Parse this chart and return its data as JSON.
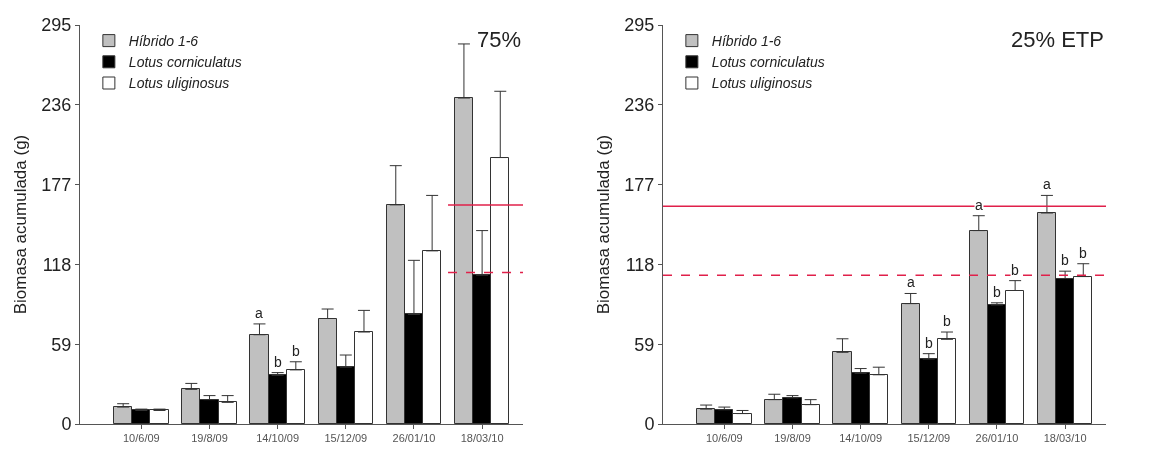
{
  "chart_data": [
    {
      "type": "bar",
      "ylabel": "Biomasa acumulada (g)",
      "categories": [
        "10/6/09",
        "19/8/09",
        "14/10/09",
        "15/12/09",
        "26/01/10",
        "18/03/10"
      ],
      "ylim": [
        0,
        295
      ],
      "yticks": [
        0,
        59,
        118,
        177,
        236,
        295
      ],
      "grid": false,
      "legend": "top left",
      "annotations": [
        "75%"
      ],
      "series": [
        {
          "name": "Híbrido 1-6",
          "color": "#c0c0c0",
          "values": [
            12.5,
            25.6,
            66,
            78,
            162,
            241
          ],
          "errors": [
            [
              12.5,
              15
            ],
            [
              25.6,
              30
            ],
            [
              66,
              74
            ],
            [
              78,
              85
            ],
            [
              162,
              191
            ],
            [
              241,
              281
            ]
          ],
          "value_labels": [
            null,
            null,
            "a",
            null,
            null,
            null
          ]
        },
        {
          "name": "Lotus corniculatus",
          "color": "#000000",
          "values": [
            10,
            18,
            36,
            42,
            81,
            110
          ],
          "errors": [
            [
              10,
              11
            ],
            [
              18,
              21
            ],
            [
              36,
              38
            ],
            [
              42,
              51
            ],
            [
              81,
              121
            ],
            [
              110,
              143
            ]
          ],
          "value_labels": [
            null,
            null,
            "b",
            null,
            null,
            null
          ]
        },
        {
          "name": "Lotus uliginosus",
          "color": "#ffffff",
          "values": [
            10,
            16,
            40,
            68,
            128,
            197
          ],
          "errors": [
            [
              10,
              11
            ],
            [
              16,
              21
            ],
            [
              40,
              46
            ],
            [
              68,
              84
            ],
            [
              128,
              169
            ],
            [
              197,
              246
            ]
          ],
          "value_labels": [
            null,
            null,
            "b",
            null,
            null,
            null
          ]
        }
      ],
      "ref_lines": [
        {
          "axis": "y",
          "value": 162,
          "color": "#e0204a",
          "line_style": "solid"
        },
        {
          "axis": "y",
          "value": 112,
          "color": "#e0204a",
          "line_style": "dashed"
        }
      ]
    },
    {
      "type": "bar",
      "ylabel": "Biomasa acumulada (g)",
      "categories": [
        "10/6/09",
        "19/8/09",
        "14/10/09",
        "15/12/09",
        "26/01/10",
        "18/03/10"
      ],
      "ylim": [
        0,
        295
      ],
      "yticks": [
        0,
        59,
        118,
        177,
        236,
        295
      ],
      "grid": false,
      "legend": "top left",
      "annotations": [
        "25% ETP"
      ],
      "series": [
        {
          "name": "Híbrido 1-6",
          "color": "#c0c0c0",
          "values": [
            11,
            18,
            53,
            89,
            143,
            156
          ],
          "errors": [
            [
              11,
              14
            ],
            [
              18,
              22
            ],
            [
              53,
              63
            ],
            [
              89,
              96.5
            ],
            [
              143,
              154
            ],
            [
              156,
              169
            ]
          ],
          "value_labels": [
            null,
            null,
            null,
            "a",
            "a",
            "a"
          ]
        },
        {
          "name": "Lotus corniculatus",
          "color": "#000000",
          "values": [
            10.5,
            19.3,
            37.5,
            48,
            88,
            107.5
          ],
          "errors": [
            [
              10.5,
              12.5
            ],
            [
              19.3,
              21
            ],
            [
              37.5,
              41
            ],
            [
              48,
              52
            ],
            [
              88,
              89.6
            ],
            [
              107.5,
              113
            ]
          ],
          "value_labels": [
            null,
            null,
            null,
            "b",
            "b",
            "b"
          ]
        },
        {
          "name": "Lotus uliginosus",
          "color": "#ffffff",
          "values": [
            7.7,
            14.3,
            36.4,
            62.6,
            98.7,
            109
          ],
          "errors": [
            [
              7.7,
              10
            ],
            [
              14.3,
              18
            ],
            [
              36.4,
              42
            ],
            [
              62.6,
              68
            ],
            [
              98.7,
              106
            ],
            [
              109,
              118.5
            ]
          ],
          "value_labels": [
            null,
            null,
            null,
            "b",
            "b",
            "b"
          ]
        }
      ],
      "ref_lines": [
        {
          "axis": "y",
          "value": 161,
          "color": "#e0204a",
          "line_style": "solid"
        },
        {
          "axis": "y",
          "value": 110,
          "color": "#e0204a",
          "line_style": "dashed"
        }
      ]
    }
  ]
}
